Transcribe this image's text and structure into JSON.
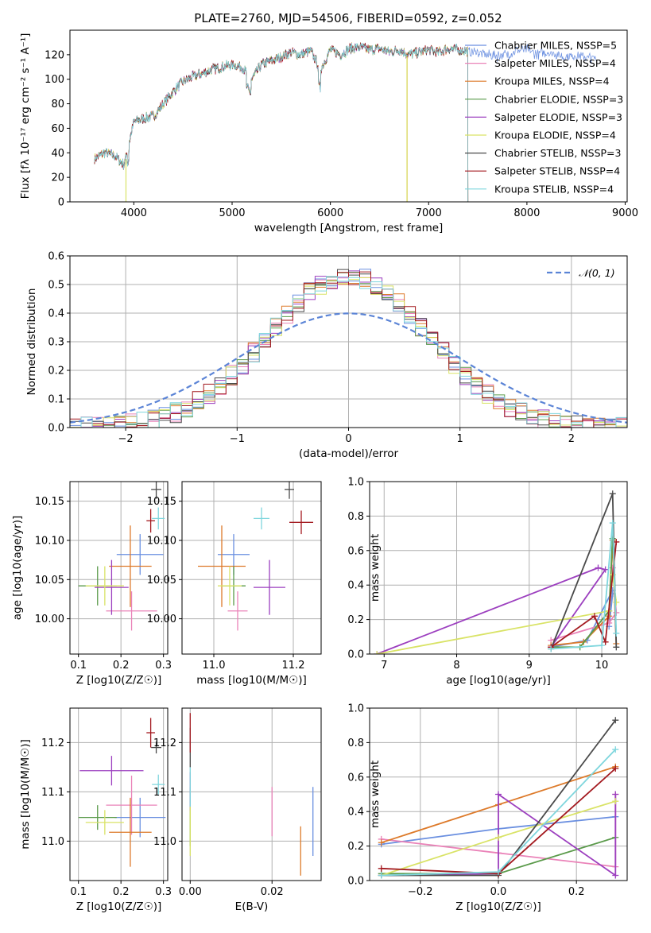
{
  "figure_title": "PLATE=2760, MJD=54506, FIBERID=0592, z=0.052",
  "colors": [
    "#6a8fe0",
    "#ea82b8",
    "#dd7a2a",
    "#5a9a4a",
    "#9c3fbf",
    "#d9e366",
    "#4a4a4a",
    "#a3191f",
    "#7fd6dd"
  ],
  "chart_data": [
    {
      "type": "line",
      "title": "PLATE=2760, MJD=54506, FIBERID=0592, z=0.052",
      "xlabel": "wavelength [Angstrom, rest frame]",
      "ylabel": "Flux [fλ 10⁻¹⁷ erg cm⁻² s⁻¹ A⁻¹]",
      "xlim": [
        3350,
        9020
      ],
      "ylim": [
        0,
        140
      ],
      "xticks": [
        "4000",
        "5000",
        "6000",
        "7000",
        "8000",
        "9000"
      ],
      "yticks": [
        "0",
        "20",
        "40",
        "60",
        "80",
        "100",
        "120"
      ],
      "legend_position": "top-right",
      "spectrum_anchor_points": {
        "x": [
          3600,
          3700,
          3800,
          3900,
          3950,
          4000,
          4100,
          4200,
          4300,
          4400,
          4500,
          4600,
          4700,
          4800,
          4900,
          5000,
          5100,
          5200,
          5300,
          5400,
          5500,
          5600,
          5700,
          5800,
          5900,
          6000,
          6100,
          6200,
          6300,
          6400,
          6500,
          6600,
          6700,
          6800,
          6900,
          7000,
          7100,
          7200,
          7300,
          7400,
          7500,
          7600,
          7700,
          7800,
          7900,
          8000,
          8100,
          8200,
          8300,
          8400,
          8500,
          8600,
          8700
        ],
        "y": [
          35,
          40,
          38,
          30,
          48,
          65,
          68,
          70,
          80,
          90,
          98,
          102,
          105,
          108,
          110,
          112,
          110,
          100,
          112,
          115,
          118,
          122,
          120,
          123,
          108,
          124,
          120,
          125,
          126,
          124,
          125,
          122,
          124,
          120,
          122,
          124,
          122,
          125,
          124,
          123,
          122,
          120,
          119,
          120,
          124,
          124,
          120,
          122,
          120,
          118,
          119,
          118,
          117
        ]
      },
      "series": [
        {
          "name": "Chabrier MILES, NSSP=5"
        },
        {
          "name": "Salpeter MILES, NSSP=4"
        },
        {
          "name": "Kroupa MILES, NSSP=4"
        },
        {
          "name": "Chabrier ELODIE, NSSP=3"
        },
        {
          "name": "Salpeter ELODIE, NSSP=3"
        },
        {
          "name": "Kroupa ELODIE, NSSP=4"
        },
        {
          "name": "Chabrier STELIB, NSSP=3"
        },
        {
          "name": "Salpeter STELIB, NSSP=4"
        },
        {
          "name": "Kroupa STELIB, NSSP=4"
        }
      ]
    },
    {
      "type": "line",
      "xlabel": "(data-model)/error",
      "ylabel": "Normed distribution",
      "xlim": [
        -2.5,
        2.5
      ],
      "ylim": [
        0,
        0.6
      ],
      "xticks": [
        "−2",
        "−1",
        "0",
        "1",
        "2"
      ],
      "yticks": [
        "0.0",
        "0.1",
        "0.2",
        "0.3",
        "0.4",
        "0.5",
        "0.6"
      ],
      "legend_position": "top-right",
      "gaussian_label": "𝒩(0, 1)",
      "histogram_bin_width": 0.1
    },
    {
      "type": "scatter",
      "xlabel": "Z [log10(Z/Z☉)]",
      "ylabel": "age [log10(age/yr)]",
      "xlim": [
        0.08,
        0.31
      ],
      "ylim": [
        9.955,
        10.175
      ],
      "xticks": [
        "0.1",
        "0.2",
        "0.3"
      ],
      "yticks": [
        "10.00",
        "10.05",
        "10.10",
        "10.15"
      ],
      "points": [
        {
          "x": 0.245,
          "y": 10.082,
          "xerr": 0.055,
          "yerr": 0.026
        },
        {
          "x": 0.225,
          "y": 10.01,
          "xerr": 0.06,
          "yerr": 0.025
        },
        {
          "x": 0.222,
          "y": 10.067,
          "xerr": 0.05,
          "yerr": 0.052
        },
        {
          "x": 0.145,
          "y": 10.042,
          "xerr": 0.045,
          "yerr": 0.025
        },
        {
          "x": 0.178,
          "y": 10.04,
          "xerr": 0.04,
          "yerr": 0.035
        },
        {
          "x": 0.162,
          "y": 10.042,
          "xerr": 0.045,
          "yerr": 0.025
        },
        {
          "x": 0.283,
          "y": 10.165,
          "xerr": 0.012,
          "yerr": 0.012
        },
        {
          "x": 0.27,
          "y": 10.125,
          "xerr": 0.01,
          "yerr": 0.015
        },
        {
          "x": 0.288,
          "y": 10.128,
          "xerr": 0.015,
          "yerr": 0.014
        }
      ]
    },
    {
      "type": "scatter",
      "xlabel": "mass [log10(M/M☉)]",
      "xlim": [
        10.92,
        11.27
      ],
      "ylim": [
        9.955,
        10.175
      ],
      "xticks": [
        "11.0",
        "11.2"
      ],
      "yticks": [
        "10.00",
        "10.05",
        "10.10",
        "10.15"
      ],
      "points": [
        {
          "x": 11.05,
          "y": 10.082,
          "xerr": 0.04,
          "yerr": 0.026
        },
        {
          "x": 11.06,
          "y": 10.01,
          "xerr": 0.025,
          "yerr": 0.025
        },
        {
          "x": 11.02,
          "y": 10.067,
          "xerr": 0.06,
          "yerr": 0.052
        },
        {
          "x": 11.05,
          "y": 10.042,
          "xerr": 0.03,
          "yerr": 0.025
        },
        {
          "x": 11.14,
          "y": 10.04,
          "xerr": 0.04,
          "yerr": 0.035
        },
        {
          "x": 11.04,
          "y": 10.042,
          "xerr": 0.03,
          "yerr": 0.025
        },
        {
          "x": 11.19,
          "y": 10.165,
          "xerr": 0.012,
          "yerr": 0.012
        },
        {
          "x": 11.22,
          "y": 10.123,
          "xerr": 0.03,
          "yerr": 0.015
        },
        {
          "x": 11.12,
          "y": 10.128,
          "xerr": 0.02,
          "yerr": 0.014
        }
      ]
    },
    {
      "type": "line",
      "xlabel": "age [log10(age/yr)]",
      "ylabel": "mass weight",
      "xlim": [
        6.8,
        10.35
      ],
      "ylim": [
        0,
        1.0
      ],
      "xticks": [
        "7",
        "8",
        "9",
        "10"
      ],
      "yticks": [
        "0.0",
        "0.2",
        "0.4",
        "0.6",
        "0.8",
        "1.0"
      ],
      "series": [
        {
          "x": [
            9.3,
            9.8,
            10.15,
            10.1,
            10.15
          ],
          "y": [
            0.04,
            0.08,
            0.37,
            0.16,
            0.35
          ]
        },
        {
          "x": [
            9.3,
            10.1,
            10.2,
            10.15
          ],
          "y": [
            0.08,
            0.18,
            0.24,
            0.5
          ]
        },
        {
          "x": [
            9.3,
            9.75,
            10.1,
            10.15,
            10.2
          ],
          "y": [
            0.05,
            0.07,
            0.22,
            0.66,
            0.06
          ]
        },
        {
          "x": [
            9.3,
            9.7,
            10.1,
            10.15
          ],
          "y": [
            0.04,
            0.04,
            0.25,
            0.67
          ]
        },
        {
          "x": [
            6.9,
            9.95,
            10.05,
            9.3
          ],
          "y": [
            0.0,
            0.5,
            0.49,
            0.04
          ]
        },
        {
          "x": [
            6.9,
            10.1,
            10.15,
            10.2
          ],
          "y": [
            0.0,
            0.25,
            0.46,
            0.3
          ]
        },
        {
          "x": [
            9.3,
            10.15,
            10.2
          ],
          "y": [
            0.03,
            0.93,
            0.04
          ]
        },
        {
          "x": [
            9.3,
            9.9,
            10.05,
            10.2
          ],
          "y": [
            0.04,
            0.22,
            0.07,
            0.65
          ]
        },
        {
          "x": [
            9.3,
            10.0,
            10.15,
            10.2
          ],
          "y": [
            0.03,
            0.05,
            0.76,
            0.12
          ]
        }
      ]
    },
    {
      "type": "scatter",
      "xlabel": "Z [log10(Z/Z☉)]",
      "ylabel": "mass [log10(M/M☉)]",
      "xlim": [
        0.08,
        0.31
      ],
      "ylim": [
        10.92,
        11.27
      ],
      "xticks": [
        "0.1",
        "0.2",
        "0.3"
      ],
      "yticks": [
        "11.0",
        "11.1",
        "11.2"
      ],
      "points": [
        {
          "x": 0.245,
          "y": 11.048,
          "xerr": 0.06,
          "yerr": 0.04
        },
        {
          "x": 0.225,
          "y": 11.073,
          "xerr": 0.06,
          "yerr": 0.06
        },
        {
          "x": 0.222,
          "y": 11.018,
          "xerr": 0.05,
          "yerr": 0.07
        },
        {
          "x": 0.145,
          "y": 11.048,
          "xerr": 0.045,
          "yerr": 0.025
        },
        {
          "x": 0.178,
          "y": 11.143,
          "xerr": 0.075,
          "yerr": 0.03
        },
        {
          "x": 0.162,
          "y": 11.038,
          "xerr": 0.045,
          "yerr": 0.025
        },
        {
          "x": 0.283,
          "y": 11.19,
          "xerr": 0.012,
          "yerr": 0.012
        },
        {
          "x": 0.27,
          "y": 11.22,
          "xerr": 0.01,
          "yerr": 0.03
        },
        {
          "x": 0.288,
          "y": 11.115,
          "xerr": 0.015,
          "yerr": 0.02
        }
      ]
    },
    {
      "type": "scatter",
      "xlabel": "E(B-V)",
      "xlim": [
        -0.002,
        0.032
      ],
      "ylim": [
        10.92,
        11.27
      ],
      "xticks": [
        "0.00",
        "0.02"
      ],
      "yticks": [
        "11.0",
        "11.1",
        "11.2"
      ],
      "points": [
        {
          "x": 0.03,
          "y": 11.04,
          "yerr": 0.07
        },
        {
          "x": 0.02,
          "y": 11.06,
          "yerr": 0.05
        },
        {
          "x": 0.027,
          "y": 10.98,
          "yerr": 0.05
        },
        {
          "x": 0.0,
          "y": 11.05,
          "yerr": 0.06
        },
        {
          "x": 0.0,
          "y": 11.1,
          "yerr": 0.04
        },
        {
          "x": 0.0,
          "y": 11.02,
          "yerr": 0.05
        },
        {
          "x": 0.0,
          "y": 11.19,
          "yerr": 0.04
        },
        {
          "x": 0.0,
          "y": 11.22,
          "yerr": 0.04
        },
        {
          "x": 0.0,
          "y": 11.11,
          "yerr": 0.04
        }
      ]
    },
    {
      "type": "line",
      "xlabel": "Z [log10(Z/Z☉)]",
      "ylabel": "mass weight",
      "xlim": [
        -0.33,
        0.33
      ],
      "ylim": [
        0,
        1.0
      ],
      "xticks": [
        "−0.2",
        "0.0",
        "0.2"
      ],
      "yticks": [
        "0.0",
        "0.2",
        "0.4",
        "0.6",
        "0.8",
        "1.0"
      ],
      "series": [
        {
          "x": [
            -0.3,
            0.0,
            0.3
          ],
          "y": [
            0.21,
            0.3,
            0.37
          ]
        },
        {
          "x": [
            -0.3,
            0.0,
            0.3,
            0.3
          ],
          "y": [
            0.24,
            0.16,
            0.08,
            0.5
          ]
        },
        {
          "x": [
            -0.3,
            0.0,
            0.3
          ],
          "y": [
            0.22,
            0.44,
            0.66
          ]
        },
        {
          "x": [
            -0.3,
            0.0,
            0.3
          ],
          "y": [
            0.04,
            0.04,
            0.25
          ]
        },
        {
          "x": [
            -0.3,
            0.0,
            0.0,
            0.3,
            0.3
          ],
          "y": [
            0.03,
            0.04,
            0.5,
            0.03,
            0.5
          ]
        },
        {
          "x": [
            -0.3,
            0.0,
            0.3
          ],
          "y": [
            0.03,
            0.25,
            0.46
          ]
        },
        {
          "x": [
            -0.3,
            0.0,
            0.3
          ],
          "y": [
            0.03,
            0.03,
            0.93
          ]
        },
        {
          "x": [
            -0.3,
            0.0,
            0.3
          ],
          "y": [
            0.07,
            0.04,
            0.65
          ]
        },
        {
          "x": [
            -0.3,
            0.0,
            0.3
          ],
          "y": [
            0.03,
            0.05,
            0.76
          ]
        }
      ]
    }
  ]
}
